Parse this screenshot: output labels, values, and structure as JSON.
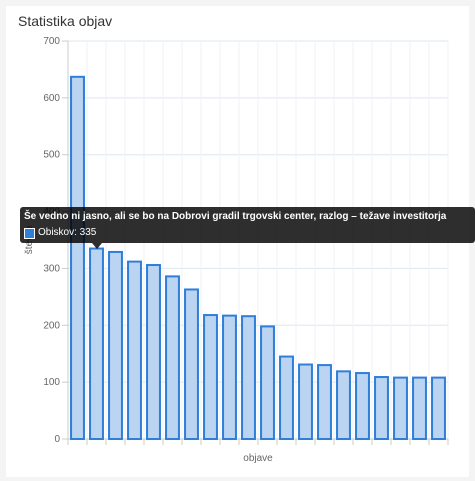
{
  "title": "Statistika objav",
  "chart_data": {
    "type": "bar",
    "xlabel": "objave",
    "ylabel": "število",
    "ylim": [
      0,
      700
    ],
    "yticks": [
      0,
      100,
      200,
      300,
      400,
      500,
      600,
      700
    ],
    "grid": true,
    "series": [
      {
        "name": "Obiskov",
        "values": [
          637,
          335,
          329,
          312,
          306,
          286,
          263,
          218,
          217,
          216,
          198,
          145,
          131,
          130,
          119,
          116,
          109,
          108,
          108,
          108
        ]
      }
    ],
    "colors": {
      "fill": "#bad4f2",
      "stroke": "#2f7ed8",
      "grid": "#dde7f2"
    }
  },
  "tooltip": {
    "title": "Še vedno ni jasno, ali se bo na Dobrovi gradil trgovski center, razlog – težave investitorja",
    "label": "Obiskov: 335",
    "bar_index": 1
  }
}
